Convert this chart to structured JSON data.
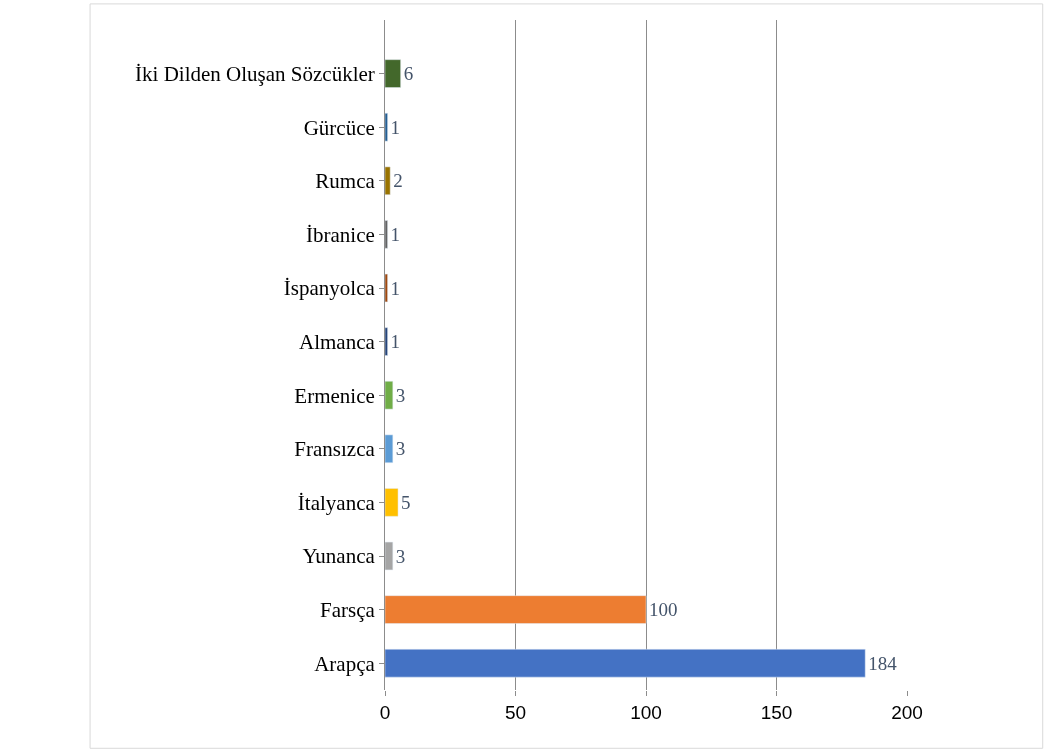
{
  "chart_data": {
    "type": "bar",
    "orientation": "horizontal",
    "categories": [
      "İki Dilden Oluşan Sözcükler",
      "Gürcüce",
      "Rumca",
      "İbranice",
      "İspanyolca",
      "Almanca",
      "Ermenice",
      "Fransızca",
      "İtalyanca",
      "Yunanca",
      "Farsça",
      "Arapça"
    ],
    "values": [
      6,
      1,
      2,
      1,
      1,
      1,
      3,
      3,
      5,
      3,
      100,
      184
    ],
    "colors": [
      "#43682b",
      "#255e91",
      "#997300",
      "#636363",
      "#9e480e",
      "#264478",
      "#70ad47",
      "#5b9bd5",
      "#ffc000",
      "#a5a5a5",
      "#ed7d31",
      "#4472c4"
    ],
    "xlim": [
      0,
      200
    ],
    "xticks": [
      0,
      50,
      100,
      150,
      200
    ],
    "grid": "x",
    "data_labels": true,
    "legend": false
  }
}
